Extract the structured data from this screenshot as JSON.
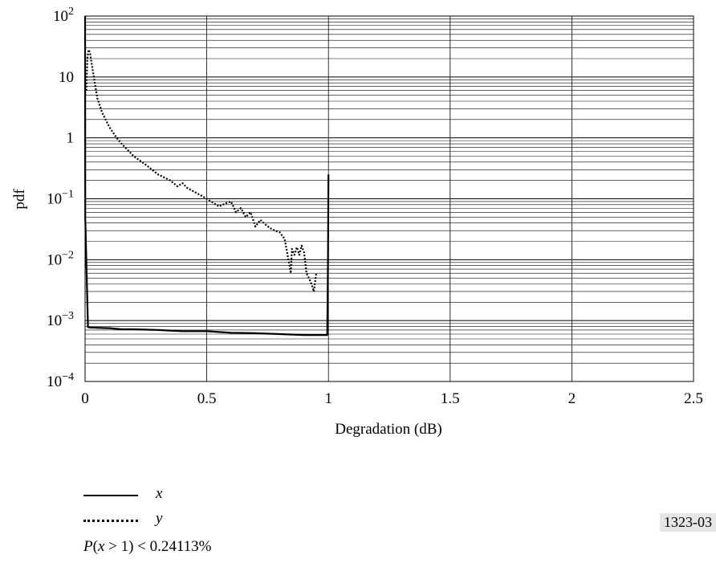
{
  "chart_data": {
    "type": "line",
    "xlabel": "Degradation (dB)",
    "ylabel": "pdf",
    "xlim": [
      0,
      2.5
    ],
    "ylim": [
      0.0001,
      100
    ],
    "yscale": "log",
    "grid": true,
    "x_ticks": [
      0,
      0.5,
      1,
      1.5,
      2,
      2.5
    ],
    "x_tick_labels": [
      "0",
      "0.5",
      "1",
      "1.5",
      "2",
      "2.5"
    ],
    "y_ticks": [
      {
        "value": 100,
        "base": "10",
        "exp": "2"
      },
      {
        "value": 10,
        "base": "10",
        "exp": ""
      },
      {
        "value": 1,
        "base": "1",
        "exp": ""
      },
      {
        "value": 0.1,
        "base": "10",
        "exp": "−1"
      },
      {
        "value": 0.01,
        "base": "10",
        "exp": "−2"
      },
      {
        "value": 0.001,
        "base": "10",
        "exp": "−3"
      },
      {
        "value": 0.0001,
        "base": "10",
        "exp": "−4"
      }
    ],
    "series": [
      {
        "name": "x",
        "style": "solid",
        "x": [
          0,
          0.0005,
          0.012,
          0.02,
          0.05,
          0.1,
          0.15,
          0.2,
          0.3,
          0.4,
          0.5,
          0.6,
          0.7,
          0.8,
          0.9,
          0.995,
          0.998,
          1.0
        ],
        "y": [
          100,
          0.05,
          0.00078,
          0.00077,
          0.00076,
          0.00075,
          0.00072,
          0.00072,
          0.0007,
          0.00067,
          0.00067,
          0.00063,
          0.00062,
          0.0006,
          0.00058,
          0.00058,
          0.01,
          0.25
        ]
      },
      {
        "name": "y",
        "style": "dotted",
        "x": [
          0.005,
          0.01,
          0.015,
          0.02,
          0.03,
          0.04,
          0.05,
          0.07,
          0.1,
          0.13,
          0.15,
          0.2,
          0.25,
          0.3,
          0.35,
          0.38,
          0.4,
          0.42,
          0.45,
          0.5,
          0.55,
          0.58,
          0.6,
          0.62,
          0.64,
          0.66,
          0.68,
          0.7,
          0.72,
          0.74,
          0.76,
          0.78,
          0.8,
          0.82,
          0.84,
          0.845,
          0.85,
          0.86,
          0.87,
          0.88,
          0.89,
          0.9,
          0.91,
          0.92,
          0.93,
          0.94,
          0.95
        ],
        "y": [
          6,
          22,
          28,
          25,
          14,
          8,
          4.5,
          2.6,
          1.5,
          1.0,
          0.8,
          0.5,
          0.36,
          0.25,
          0.2,
          0.16,
          0.18,
          0.15,
          0.13,
          0.1,
          0.075,
          0.085,
          0.09,
          0.06,
          0.07,
          0.05,
          0.06,
          0.035,
          0.045,
          0.038,
          0.033,
          0.03,
          0.028,
          0.022,
          0.008,
          0.006,
          0.015,
          0.012,
          0.016,
          0.012,
          0.017,
          0.013,
          0.006,
          0.005,
          0.004,
          0.003,
          0.006
        ]
      }
    ]
  },
  "legend": {
    "items": [
      {
        "label": "x",
        "style": "solid"
      },
      {
        "label": "y",
        "style": "dotted"
      }
    ]
  },
  "note": {
    "var": "P",
    "open": "(",
    "var2": "x",
    "rest": " > 1) < 0.24113%"
  },
  "figure_id": "1323-03"
}
